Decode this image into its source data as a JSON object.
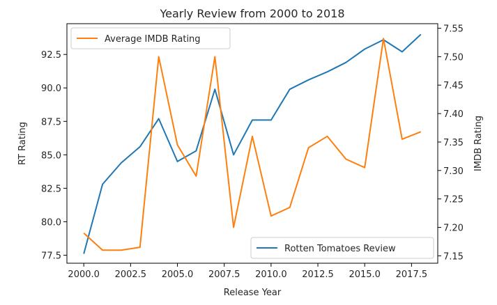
{
  "chart_data": {
    "type": "line",
    "title": "Yearly Review from 2000 to 2018",
    "xlabel": "Release Year",
    "ylabel": "RT Rating",
    "y2label": "IMDB Rating",
    "xlim": [
      1999.1,
      2018.9
    ],
    "ylim": [
      76.9,
      94.8
    ],
    "y2lim": [
      7.137,
      7.558
    ],
    "x_ticks": [
      2000.0,
      2002.5,
      2005.0,
      2007.5,
      2010.0,
      2012.5,
      2015.0,
      2017.5
    ],
    "x_tick_labels": [
      "2000.0",
      "2002.5",
      "2005.0",
      "2007.5",
      "2010.0",
      "2012.5",
      "2015.0",
      "2017.5"
    ],
    "y_ticks": [
      77.5,
      80.0,
      82.5,
      85.0,
      87.5,
      90.0,
      92.5
    ],
    "y_tick_labels": [
      "77.5",
      "80.0",
      "82.5",
      "85.0",
      "87.5",
      "90.0",
      "92.5"
    ],
    "y2_ticks": [
      7.15,
      7.2,
      7.25,
      7.3,
      7.35,
      7.4,
      7.45,
      7.5,
      7.55
    ],
    "y2_tick_labels": [
      "7.15",
      "7.20",
      "7.25",
      "7.30",
      "7.35",
      "7.40",
      "7.45",
      "7.50",
      "7.55"
    ],
    "x": [
      2000,
      2001,
      2002,
      2003,
      2004,
      2005,
      2006,
      2007,
      2008,
      2009,
      2010,
      2011,
      2012,
      2013,
      2014,
      2015,
      2016,
      2017,
      2018
    ],
    "series": [
      {
        "name": "Rotten Tomatoes Review",
        "axis": "left",
        "color": "#1f77b4",
        "values": [
          77.6,
          82.8,
          84.4,
          85.6,
          87.7,
          84.5,
          85.3,
          89.9,
          85.0,
          87.6,
          87.6,
          89.9,
          90.6,
          91.2,
          91.9,
          92.9,
          93.6,
          92.7,
          94.0
        ]
      },
      {
        "name": "Average IMDB Rating",
        "axis": "right",
        "color": "#ff7f0e",
        "values": [
          7.19,
          7.16,
          7.16,
          7.165,
          7.5,
          7.345,
          7.29,
          7.5,
          7.2,
          7.36,
          7.22,
          7.235,
          7.34,
          7.36,
          7.32,
          7.305,
          7.532,
          7.355,
          7.368
        ]
      }
    ],
    "legends": [
      {
        "series": "Average IMDB Rating",
        "placement": "upper-left"
      },
      {
        "series": "Rotten Tomatoes Review",
        "placement": "lower-right"
      }
    ],
    "grid": false
  }
}
